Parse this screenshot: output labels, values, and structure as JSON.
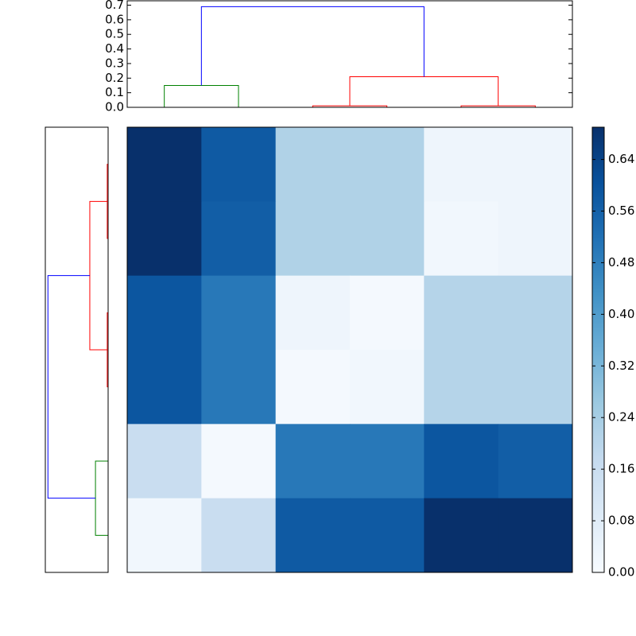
{
  "chart_data": [
    {
      "type": "dendrogram",
      "orientation": "top",
      "xlim": [
        0,
        60
      ],
      "ylim": [
        0,
        0.73
      ],
      "yticks": [
        {
          "value": 0,
          "label": "0.0"
        },
        0.1,
        0.2,
        0.3,
        0.4,
        0.5,
        0.6,
        0.7
      ],
      "links": [
        {
          "color": "#008000",
          "icoord": [
            5,
            5,
            15,
            15
          ],
          "dcoord": [
            0,
            0.15,
            0.15,
            0
          ]
        },
        {
          "color": "#ff0000",
          "icoord": [
            25,
            25,
            35,
            35
          ],
          "dcoord": [
            0,
            0.01,
            0.01,
            0
          ]
        },
        {
          "color": "#ff0000",
          "icoord": [
            45,
            45,
            55,
            55
          ],
          "dcoord": [
            0,
            0.01,
            0.01,
            0
          ]
        },
        {
          "color": "#ff0000",
          "icoord": [
            30,
            30,
            50,
            50
          ],
          "dcoord": [
            0.01,
            0.21,
            0.21,
            0.01
          ]
        },
        {
          "color": "#0000ff",
          "icoord": [
            10,
            10,
            40,
            40
          ],
          "dcoord": [
            0.15,
            0.69,
            0.69,
            0.21
          ]
        }
      ]
    },
    {
      "type": "dendrogram",
      "orientation": "left",
      "xlim": [
        0,
        60
      ],
      "ylim": [
        0,
        0.72
      ],
      "links": [
        {
          "color": "#008000",
          "icoord": [
            5,
            5,
            15,
            15
          ],
          "dcoord": [
            0,
            0.145,
            0.145,
            0
          ]
        },
        {
          "color": "#ff0000",
          "icoord": [
            25,
            25,
            35,
            35
          ],
          "dcoord": [
            0,
            0.01,
            0.01,
            0
          ]
        },
        {
          "color": "#ff0000",
          "icoord": [
            45,
            45,
            55,
            55
          ],
          "dcoord": [
            0,
            0.01,
            0.01,
            0
          ]
        },
        {
          "color": "#ff0000",
          "icoord": [
            30,
            30,
            50,
            50
          ],
          "dcoord": [
            0.01,
            0.21,
            0.21,
            0.01
          ]
        },
        {
          "color": "#0000ff",
          "icoord": [
            10,
            10,
            40,
            40
          ],
          "dcoord": [
            0.145,
            0.69,
            0.69,
            0.21
          ]
        }
      ]
    },
    {
      "type": "heatmap",
      "colormap": [
        "#f7fbff",
        "#deebf7",
        "#c6dbef",
        "#9ecae1",
        "#6baed6",
        "#4292c6",
        "#2171b5",
        "#08519c",
        "#08306b"
      ],
      "clim": [
        0,
        0.69
      ],
      "cticks": [
        {
          "value": 0,
          "label": "0.00"
        },
        0.08,
        0.16,
        0.24,
        0.32,
        {
          "value": 0.4,
          "label": "0.40"
        },
        0.48,
        0.56,
        0.64
      ],
      "values": [
        [
          0.69,
          0.58,
          0.22,
          0.22,
          0.03,
          0.03
        ],
        [
          0.69,
          0.57,
          0.22,
          0.22,
          0.02,
          0.03
        ],
        [
          0.59,
          0.5,
          0.03,
          0.01,
          0.21,
          0.21
        ],
        [
          0.59,
          0.5,
          0.01,
          0.02,
          0.21,
          0.21
        ],
        [
          0.16,
          0.01,
          0.5,
          0.5,
          0.59,
          0.57
        ],
        [
          0.02,
          0.16,
          0.58,
          0.58,
          0.69,
          0.69
        ]
      ]
    }
  ]
}
